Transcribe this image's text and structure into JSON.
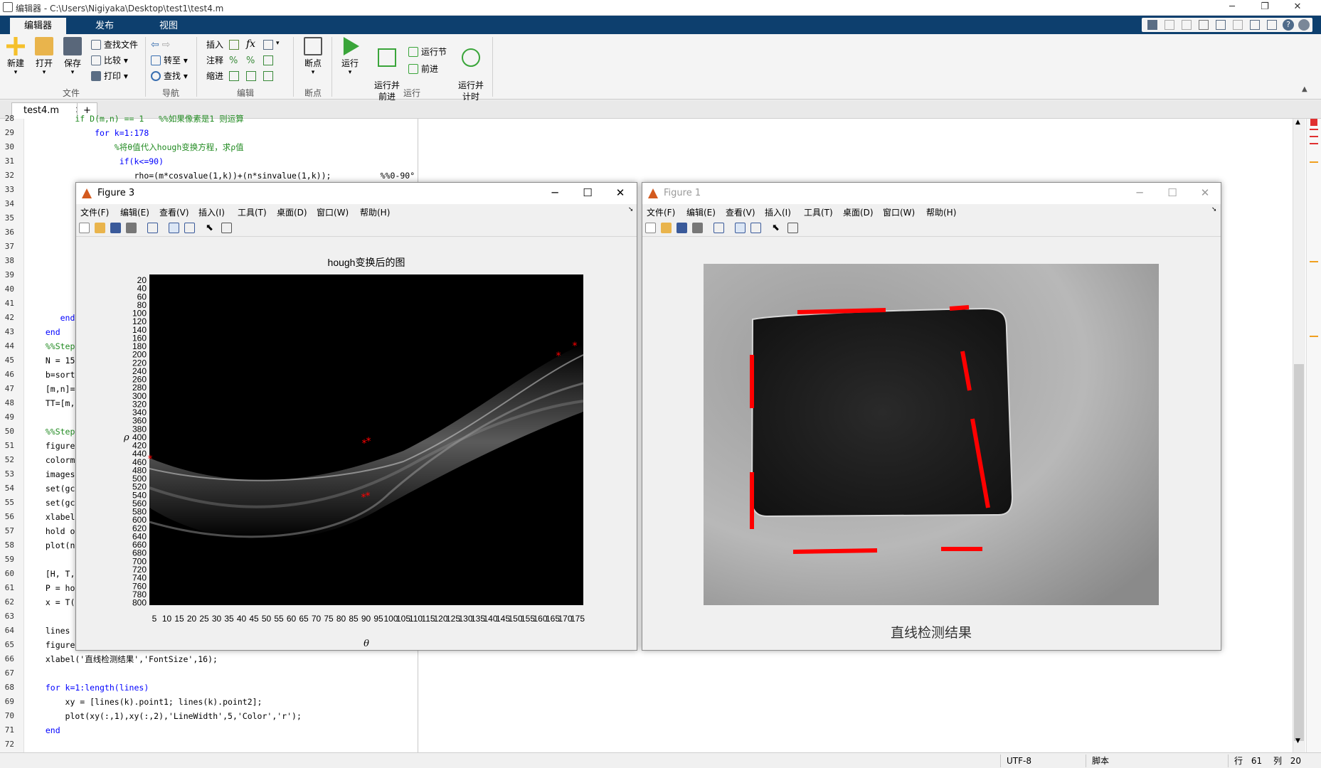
{
  "window": {
    "title": "编辑器 - C:\\Users\\Nigiyaka\\Desktop\\test1\\test4.m"
  },
  "ribbon_tabs": [
    "编辑器",
    "发布",
    "视图"
  ],
  "ribbon": {
    "new": "新建",
    "open": "打开",
    "save": "保存",
    "find_files": "查找文件",
    "compare": "比较",
    "print": "打印",
    "go_to": "转至",
    "find": "查找",
    "insert": "插入",
    "comment": "注释",
    "indent": "缩进",
    "fx": "fx",
    "breakpoints": "断点",
    "run": "运行",
    "run_advance": "运行并\n前进",
    "run_section": "运行节",
    "advance": "前进",
    "run_time": "运行并\n计时",
    "groups": [
      "文件",
      "导航",
      "编辑",
      "断点",
      "运行"
    ]
  },
  "doc_tab": {
    "label": "test4.m",
    "close": "✕",
    "add": "+"
  },
  "editor": {
    "lines": [
      {
        "n": "28",
        "text": "        if D(m,n) == 1   %%如果像素是1 则运算",
        "cls": "cm"
      },
      {
        "n": "29",
        "text": "            for k=1:178",
        "cls": "kw"
      },
      {
        "n": "30",
        "text": "                %将θ值代入hough变换方程，求ρ值",
        "cls": "cm"
      },
      {
        "n": "31",
        "text": "                 if(k<=90)",
        "cls": "kw"
      },
      {
        "n": "32",
        "text": "                    rho=(m*cosvalue(1,k))+(n*sinvalue(1,k));          %%0-90°",
        "cls": ""
      },
      {
        "n": "33",
        "text": "",
        "cls": ""
      },
      {
        "n": "34",
        "text": "",
        "cls": ""
      },
      {
        "n": "35",
        "text": "",
        "cls": ""
      },
      {
        "n": "36",
        "text": "",
        "cls": ""
      },
      {
        "n": "37",
        "text": "",
        "cls": ""
      },
      {
        "n": "38",
        "text": "",
        "cls": ""
      },
      {
        "n": "39",
        "text": "",
        "cls": ""
      },
      {
        "n": "40",
        "text": "",
        "cls": ""
      },
      {
        "n": "41",
        "text": "",
        "cls": ""
      },
      {
        "n": "42",
        "text": "     end",
        "cls": "kw"
      },
      {
        "n": "43",
        "text": "  end",
        "cls": "kw"
      },
      {
        "n": "44",
        "text": "  %%Step",
        "cls": "cm"
      },
      {
        "n": "45",
        "text": "  N = 15",
        "cls": ""
      },
      {
        "n": "46",
        "text": "  b=sort",
        "cls": ""
      },
      {
        "n": "47",
        "text": "  [m,n]=",
        "cls": ""
      },
      {
        "n": "48",
        "text": "  TT=[m,",
        "cls": ""
      },
      {
        "n": "49",
        "text": "",
        "cls": ""
      },
      {
        "n": "50",
        "text": "  %%Step",
        "cls": "cm"
      },
      {
        "n": "51",
        "text": "  figure",
        "cls": ""
      },
      {
        "n": "52",
        "text": "  colorm",
        "cls": ""
      },
      {
        "n": "53",
        "text": "  images",
        "cls": ""
      },
      {
        "n": "54",
        "text": "  set(gc",
        "cls": ""
      },
      {
        "n": "55",
        "text": "  set(gc",
        "cls": ""
      },
      {
        "n": "56",
        "text": "  xlabel",
        "cls": ""
      },
      {
        "n": "57",
        "text": "  hold o",
        "cls": ""
      },
      {
        "n": "58",
        "text": "  plot(n",
        "cls": ""
      },
      {
        "n": "59",
        "text": "",
        "cls": ""
      },
      {
        "n": "60",
        "text": "  [H, T,",
        "cls": ""
      },
      {
        "n": "61",
        "text": "  P = ho",
        "cls": ""
      },
      {
        "n": "62",
        "text": "  x = T(",
        "cls": ""
      },
      {
        "n": "63",
        "text": "",
        "cls": ""
      },
      {
        "n": "64",
        "text": "  lines ",
        "cls": ""
      },
      {
        "n": "65",
        "text": "  figure",
        "cls": ""
      },
      {
        "n": "66",
        "text": "  xlabel('直线检测结果','FontSize',16);",
        "cls": ""
      },
      {
        "n": "67",
        "text": "",
        "cls": ""
      },
      {
        "n": "68",
        "text": "  for k=1:length(lines)",
        "cls": "kw"
      },
      {
        "n": "69",
        "text": "      xy = [lines(k).point1; lines(k).point2];",
        "cls": ""
      },
      {
        "n": "70",
        "text": "      plot(xy(:,1),xy(:,2),'LineWidth',5,'Color','r');",
        "cls": ""
      },
      {
        "n": "71",
        "text": "  end",
        "cls": "kw"
      },
      {
        "n": "72",
        "text": "",
        "cls": ""
      }
    ]
  },
  "status": {
    "encoding": "UTF-8",
    "mode": "脚本",
    "row_label": "行",
    "row": "61",
    "col_label": "列",
    "col": "20"
  },
  "figure3": {
    "title": "Figure 3",
    "menu": [
      "文件(F)",
      "编辑(E)",
      "查看(V)",
      "插入(I)",
      "工具(T)",
      "桌面(D)",
      "窗口(W)",
      "帮助(H)"
    ],
    "plot_title": "hough变换后的图",
    "ylabel": "ρ",
    "xlabel": "θ",
    "yticks": [
      "20",
      "40",
      "60",
      "80",
      "100",
      "120",
      "140",
      "160",
      "180",
      "200",
      "220",
      "240",
      "260",
      "280",
      "300",
      "320",
      "340",
      "360",
      "380",
      "400",
      "420",
      "440",
      "460",
      "480",
      "500",
      "520",
      "540",
      "560",
      "580",
      "600",
      "620",
      "640",
      "660",
      "680",
      "700",
      "720",
      "740",
      "760",
      "780",
      "800"
    ],
    "xticks": [
      "5",
      "10",
      "15",
      "20",
      "25",
      "30",
      "35",
      "40",
      "45",
      "50",
      "55",
      "60",
      "65",
      "70",
      "75",
      "80",
      "85",
      "90",
      "95",
      "100",
      "105",
      "110",
      "115",
      "120",
      "125",
      "130",
      "135",
      "140",
      "145",
      "150",
      "155",
      "160",
      "165",
      "170",
      "175"
    ]
  },
  "figure1": {
    "title": "Figure 1",
    "menu": [
      "文件(F)",
      "编辑(E)",
      "查看(V)",
      "插入(I)",
      "工具(T)",
      "桌面(D)",
      "窗口(W)",
      "帮助(H)"
    ],
    "xlabel": "直线检测结果"
  }
}
